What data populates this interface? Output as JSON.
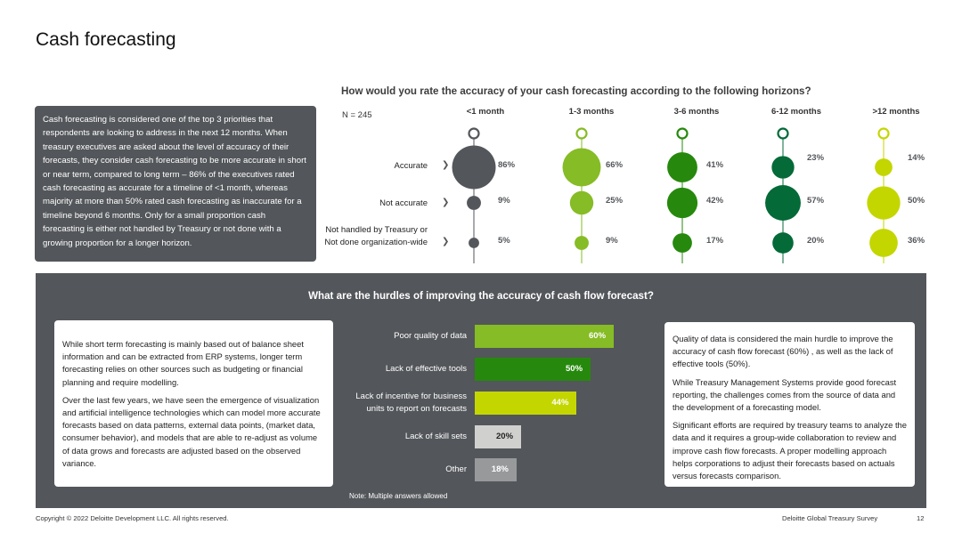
{
  "page": {
    "title": "Cash forecasting",
    "intro_text": "Cash forecasting is considered one of the top 3  priorities that respondents are looking to address in the next 12 months. When treasury executives are asked about the level of accuracy of their forecasts, they consider cash forecasting to be more accurate in short or near term, compared to long term – 86% of the executives rated cash forecasting as accurate for a timeline of <1 month, whereas majority at more than 50% rated cash forecasting as inaccurate for a timeline beyond 6 months. Only for a small proportion cash forecasting is either not handled by Treasury or not done with a growing proportion for a longer horizon."
  },
  "colors": {
    "charcoal": "#53565a",
    "dark_green": "#046a38",
    "green": "#26890d",
    "light_green": "#86bc25",
    "yellow_green": "#c4d600",
    "light_grey": "#d0d0ce",
    "grey": "#97999b"
  },
  "chart_data": [
    {
      "type": "scatter",
      "title": "How would you rate the accuracy of your cash forecasting according to the following horizons?",
      "n_label": "N = 245",
      "columns": [
        "<1 month",
        "1-3 months",
        "3-6 months",
        "6-12 months",
        ">12 months"
      ],
      "rows": [
        "Accurate",
        "Not accurate",
        "Not handled by Treasury or Not done organization-wide"
      ],
      "series": [
        {
          "column": "<1 month",
          "color": "#53565a",
          "values": [
            86,
            9,
            5
          ],
          "labels": [
            "86%",
            "9%",
            "5%"
          ]
        },
        {
          "column": "1-3 months",
          "color": "#86bc25",
          "values": [
            66,
            25,
            9
          ],
          "labels": [
            "66%",
            "25%",
            "9%"
          ]
        },
        {
          "column": "3-6 months",
          "color": "#26890d",
          "values": [
            41,
            42,
            17
          ],
          "labels": [
            "41%",
            "42%",
            "17%"
          ]
        },
        {
          "column": "6-12 months",
          "color": "#046a38",
          "values": [
            23,
            57,
            20
          ],
          "labels": [
            "23%",
            "57%",
            "20%"
          ]
        },
        {
          "column": ">12 months",
          "color": "#c4d600",
          "values": [
            14,
            50,
            36
          ],
          "labels": [
            "14%",
            "50%",
            "36%"
          ]
        }
      ]
    },
    {
      "type": "bar",
      "orientation": "horizontal",
      "title": "What are the hurdles of improving the accuracy of cash flow forecast?",
      "categories": [
        "Poor quality of data",
        "Lack of effective tools",
        "Lack of incentive for business units to report on forecasts",
        "Lack of skill sets",
        "Other"
      ],
      "category_lines": [
        [
          "Poor quality of data"
        ],
        [
          "Lack of effective tools"
        ],
        [
          "Lack of incentive for business",
          "units to report on forecasts"
        ],
        [
          "Lack of skill sets"
        ],
        [
          "Other"
        ]
      ],
      "values": [
        60,
        50,
        44,
        20,
        18
      ],
      "value_labels": [
        "60%",
        "50%",
        "44%",
        "20%",
        "18%"
      ],
      "bar_colors": [
        "#86bc25",
        "#26890d",
        "#c4d600",
        "#d0d0ce",
        "#97999b"
      ],
      "label_colors": [
        "#ffffff",
        "#ffffff",
        "#ffffff",
        "#222222",
        "#ffffff"
      ],
      "xlim": [
        0,
        100
      ],
      "note": "Note: Multiple answers allowed"
    }
  ],
  "hurdles": {
    "left_p1": "While short term forecasting is mainly based out of balance sheet information and can be extracted from ERP systems, longer term forecasting  relies on other sources such as budgeting or financial planning and require modelling.",
    "left_p2": "Over the last few years, we have seen the emergence of visualization and artificial intelligence technologies which can model more accurate forecasts based on data patterns, external data points, (market data, consumer behavior), and models that are able to re-adjust  as volume of data grows and forecasts are adjusted based on the observed variance.",
    "right_p1": "Quality of data is considered the main hurdle to improve the accuracy of cash flow forecast (60%) , as well as the lack of effective tools (50%).",
    "right_p2": "While Treasury Management Systems provide good forecast reporting, the challenges comes from the source of data and the development of a forecasting model.",
    "right_p3": "Significant efforts are required by treasury teams to analyze the data and it requires a group-wide collaboration to review and improve cash flow forecasts. A proper modelling approach helps corporations to adjust their forecasts based on actuals versus forecasts comparison."
  },
  "footer": {
    "copyright": "Copyright © 2022 Deloitte Development LLC. All rights reserved.",
    "survey": "Deloitte Global Treasury Survey",
    "page_number": "12"
  }
}
